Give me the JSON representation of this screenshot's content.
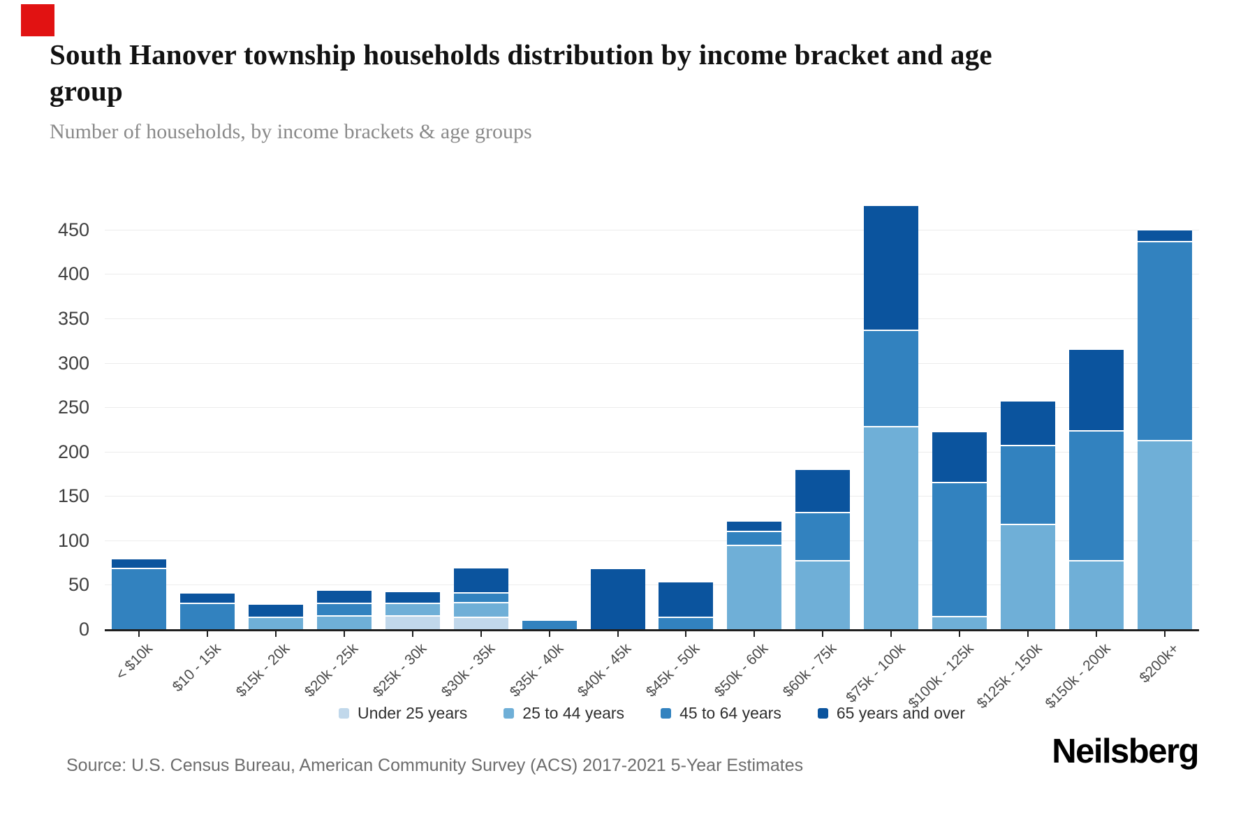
{
  "marker": {
    "color": "#e11212"
  },
  "header": {
    "title": "South Hanover township households distribution by income bracket and age group",
    "subtitle": "Number of households, by income brackets & age groups"
  },
  "footer": {
    "source": "Source: U.S. Census Bureau, American Community Survey (ACS) 2017-2021 5-Year Estimates",
    "logo": "Neilsberg"
  },
  "chart_data": {
    "type": "bar",
    "stacked": true,
    "title": "South Hanover township households distribution by income bracket and age group",
    "subtitle": "Number of households, by income brackets & age groups",
    "xlabel": "",
    "ylabel": "",
    "ylim": [
      0,
      508
    ],
    "yticks": [
      0,
      50,
      100,
      150,
      200,
      250,
      300,
      350,
      400,
      450
    ],
    "grid": true,
    "legend_position": "bottom",
    "categories": [
      "< $10k",
      "$10 - 15k",
      "$15k - 20k",
      "$20k - 25k",
      "$25k - 30k",
      "$30k - 35k",
      "$35k - 40k",
      "$40k - 45k",
      "$45k - 50k",
      "$50k - 60k",
      "$60k - 75k",
      "$75k - 100k",
      "$100k - 125k",
      "$125k - 150k",
      "$150k - 200k",
      "$200k+"
    ],
    "series": [
      {
        "name": "Under 25 years",
        "color": "#c1d8eb",
        "values": [
          0,
          0,
          0,
          0,
          16,
          14,
          0,
          0,
          0,
          0,
          0,
          0,
          0,
          0,
          0,
          0
        ]
      },
      {
        "name": "25 to 44 years",
        "color": "#6fafd7",
        "values": [
          0,
          0,
          14,
          16,
          14,
          17,
          0,
          0,
          0,
          95,
          78,
          229,
          15,
          119,
          78,
          213
        ]
      },
      {
        "name": "45 to 64 years",
        "color": "#3282bf",
        "values": [
          69,
          30,
          0,
          14,
          0,
          11,
          11,
          0,
          14,
          16,
          54,
          108,
          151,
          89,
          146,
          224
        ]
      },
      {
        "name": "65 years and over",
        "color": "#0b549e",
        "values": [
          11,
          12,
          15,
          15,
          13,
          28,
          0,
          69,
          40,
          12,
          49,
          141,
          57,
          50,
          92,
          14
        ]
      }
    ],
    "totals": [
      80,
      42,
      29,
      45,
      43,
      70,
      11,
      69,
      54,
      123,
      181,
      478,
      223,
      258,
      316,
      451
    ]
  }
}
